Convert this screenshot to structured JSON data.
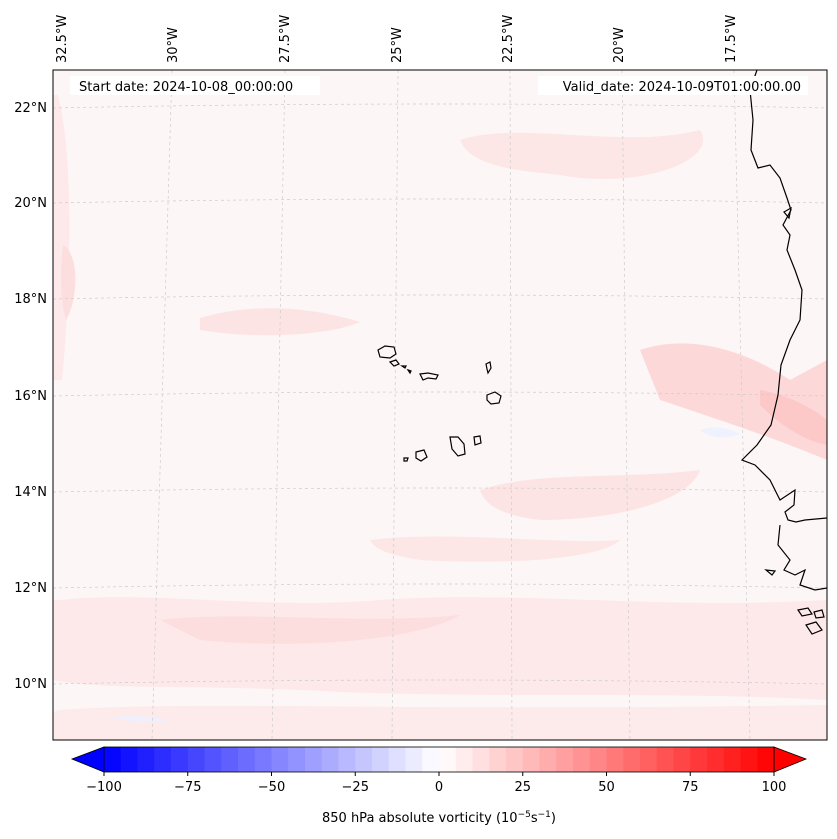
{
  "map": {
    "start_date_text": "Start date: 2024-10-08_00:00:00",
    "valid_date_text": "Valid_date: 2024-10-09T01:00:00.00",
    "lon_labels": [
      "32.5°W",
      "30°W",
      "27.5°W",
      "25°W",
      "22.5°W",
      "20°W",
      "17.5°W"
    ],
    "lat_labels": [
      "22°N",
      "20°N",
      "18°N",
      "16°N",
      "14°N",
      "12°N",
      "10°N"
    ],
    "coastline_color": "#000000",
    "gridline_color": "#cccccc"
  },
  "colorbar": {
    "ticks": [
      "−100",
      "−75",
      "−50",
      "−25",
      "0",
      "25",
      "50",
      "75",
      "100"
    ],
    "label_prefix": "850 hPa absolute vorticity (10",
    "label_exp1": "−5",
    "label_mid": "s",
    "label_exp2": "−1",
    "label_suffix": ")",
    "min_color": "#0000ff",
    "mid_color": "#ffffff",
    "max_color": "#ff0000",
    "range": [
      -100,
      100
    ],
    "extend": "both"
  }
}
